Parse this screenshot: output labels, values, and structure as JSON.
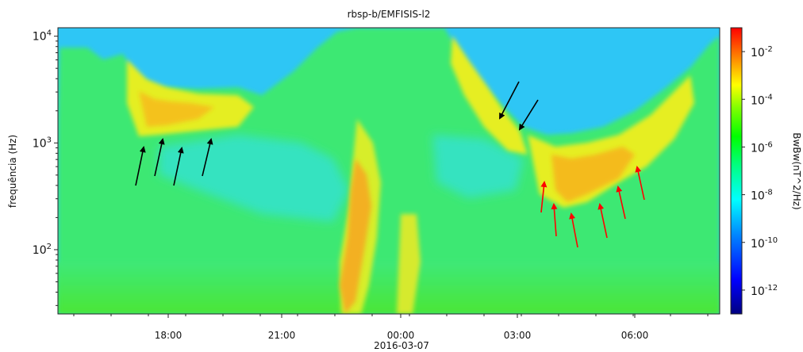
{
  "chart_data": {
    "type": "heatmap",
    "title": "rbsp-b/EMFISIS-l2",
    "ylabel": "frequência  (Hz)",
    "colorbar_label": "BwBw(nT^2/Hz)",
    "x_ticks": [
      "18:00",
      "21:00",
      "00:00",
      "03:00",
      "06:00"
    ],
    "x_date_label": "2016-03-07",
    "y_scale": "log",
    "ylim": [
      25,
      12000
    ],
    "y_ticks": [
      {
        "base": "10",
        "exp": "2",
        "value": 100
      },
      {
        "base": "10",
        "exp": "3",
        "value": 1000
      },
      {
        "base": "10",
        "exp": "4",
        "value": 10000
      }
    ],
    "colorbar_scale": "log",
    "colorbar_range": [
      1e-13,
      0.1
    ],
    "colorbar_ticks": [
      {
        "base": "10",
        "exp": "-2",
        "value": 0.01
      },
      {
        "base": "10",
        "exp": "-4",
        "value": 0.0001
      },
      {
        "base": "10",
        "exp": "-6",
        "value": 1e-06
      },
      {
        "base": "10",
        "exp": "-8",
        "value": 1e-08
      },
      {
        "base": "10",
        "exp": "-10",
        "value": 1e-10
      },
      {
        "base": "10",
        "exp": "-12",
        "value": 1e-12
      }
    ],
    "colormap": [
      "#000080",
      "#0000ff",
      "#0080ff",
      "#00ffff",
      "#00ff80",
      "#00ff00",
      "#80ff00",
      "#ffff00",
      "#ff8000",
      "#ff0000"
    ],
    "background_color": "#2ec6f5",
    "annotations": {
      "black_arrows": 6,
      "red_arrows": 7
    }
  }
}
